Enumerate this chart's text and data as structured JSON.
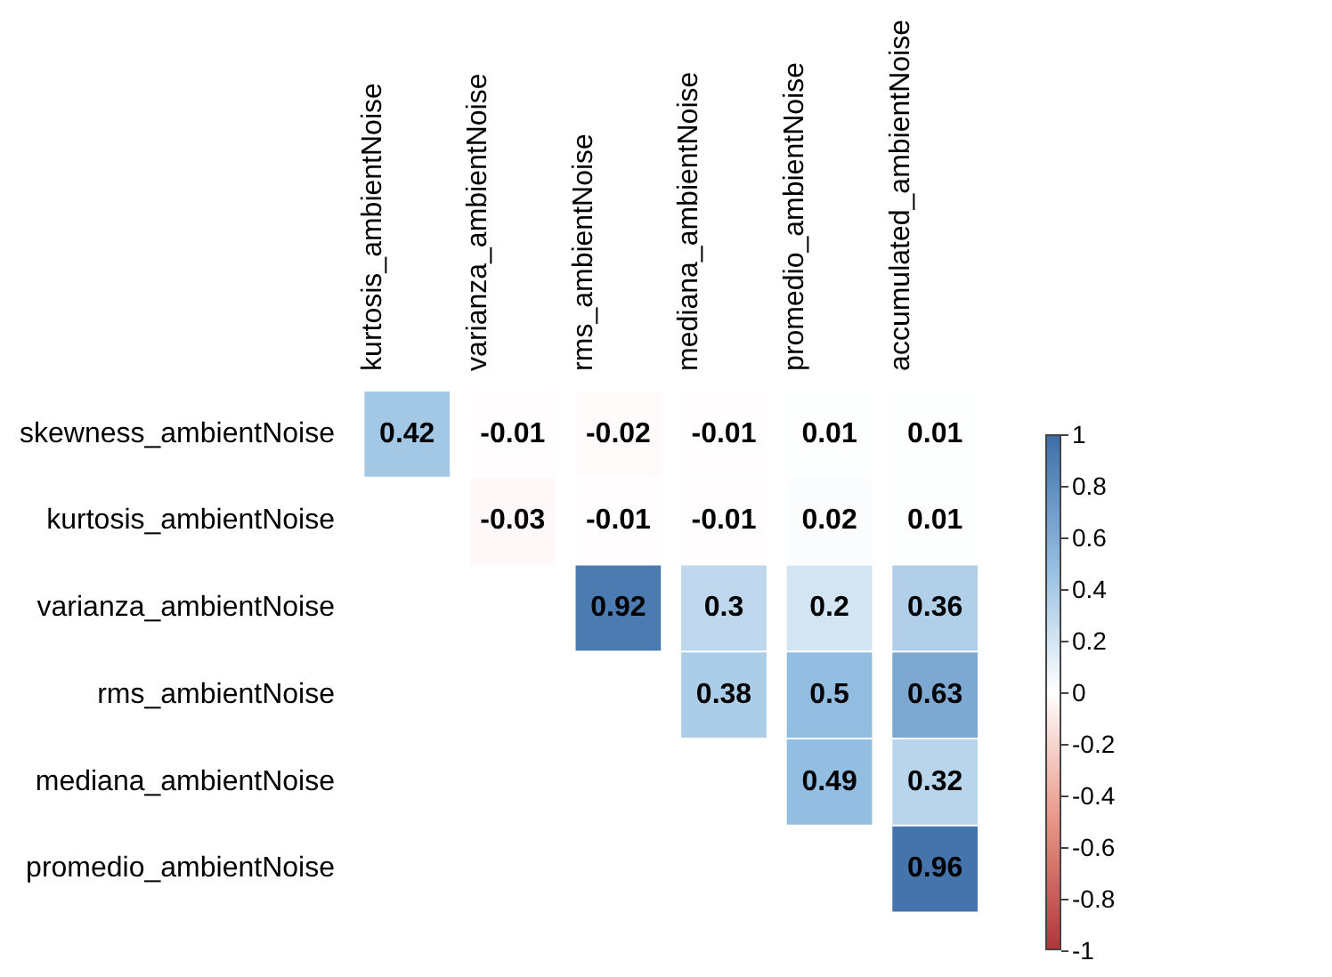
{
  "chart_data": {
    "type": "heatmap",
    "categories": [
      "kurtosis_ambientNoise",
      "varianza_ambientNoise",
      "rms_ambientNoise",
      "mediana_ambientNoise",
      "promedio_ambientNoise",
      "accumulated_ambientNoise"
    ],
    "y_categories": [
      "skewness_ambientNoise",
      "kurtosis_ambientNoise",
      "varianza_ambientNoise",
      "rms_ambientNoise",
      "mediana_ambientNoise",
      "promedio_ambientNoise"
    ],
    "cells": [
      [
        0.42,
        -0.01,
        -0.02,
        -0.01,
        0.01,
        0.01
      ],
      [
        null,
        -0.03,
        -0.01,
        -0.01,
        0.02,
        0.01
      ],
      [
        null,
        null,
        0.92,
        0.3,
        0.2,
        0.36
      ],
      [
        null,
        null,
        null,
        0.38,
        0.5,
        0.63
      ],
      [
        null,
        null,
        null,
        null,
        0.49,
        0.32
      ],
      [
        null,
        null,
        null,
        null,
        null,
        0.96
      ]
    ],
    "clim": [
      -1,
      1
    ],
    "cticks": [
      -1,
      {
        "value": -0.8,
        "label": "-0.8"
      },
      {
        "value": -0.6,
        "label": "-0.6"
      },
      {
        "value": -0.4,
        "label": "-0.4"
      },
      {
        "value": -0.2,
        "label": "-0.2"
      },
      0,
      0.2,
      0.4,
      0.6,
      0.8,
      1
    ],
    "data_labels": true
  }
}
